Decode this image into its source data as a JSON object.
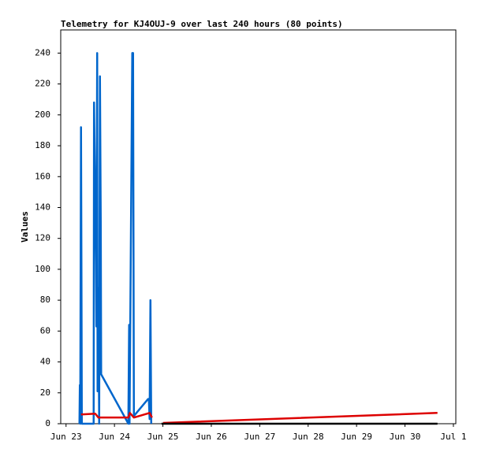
{
  "chart_data": {
    "type": "line",
    "title": "Telemetry for KJ4OUJ-9 over last 240 hours (80 points)",
    "y_label": "Values",
    "xlim": [
      22.89,
      31.05
    ],
    "xticks": [
      {
        "value": 23,
        "label": "Jun 23"
      },
      {
        "value": 24,
        "label": "Jun 24"
      },
      {
        "value": 25,
        "label": "Jun 25"
      },
      {
        "value": 26,
        "label": "Jun 26"
      },
      {
        "value": 27,
        "label": "Jun 27"
      },
      {
        "value": 28,
        "label": "Jun 28"
      },
      {
        "value": 29,
        "label": "Jun 29"
      },
      {
        "value": 30,
        "label": "Jun 30"
      },
      {
        "value": 31,
        "label": "Jul 1"
      }
    ],
    "ylim": [
      0,
      255
    ],
    "yticks": [
      0,
      20,
      40,
      60,
      80,
      100,
      120,
      140,
      160,
      180,
      200,
      220,
      240
    ],
    "series": [
      {
        "color": "#0066cc",
        "x": [
          23.277,
          23.285,
          23.293,
          23.309,
          23.318,
          23.326,
          23.57,
          23.578,
          23.586,
          23.603,
          23.619,
          23.627,
          23.643,
          23.651,
          23.668,
          23.684,
          23.7,
          23.717,
          23.725,
          24.287,
          24.295,
          24.303,
          24.311,
          24.368,
          24.384,
          24.401,
          24.694,
          24.71,
          24.726,
          24.743,
          24.759
        ],
        "values": [
          0,
          25,
          0,
          192,
          97,
          0,
          0,
          208,
          187,
          145,
          104,
          63,
          240,
          21,
          88,
          0,
          225,
          128,
          32,
          0,
          32,
          64,
          0,
          240,
          240,
          5,
          16,
          16,
          3,
          80,
          0
        ]
      },
      {
        "color": "#dd0000",
        "x": [
          23.309,
          23.603,
          23.668,
          24.287,
          24.319,
          24.401,
          24.726,
          24.775,
          24.9,
          25.003,
          30.671
        ],
        "values": [
          6,
          6.5,
          4,
          4,
          7,
          4,
          7,
          4,
          null,
          0.5,
          7
        ]
      },
      {
        "color": "#000000",
        "x": [
          24.971,
          30.671
        ],
        "values": [
          0,
          0
        ]
      }
    ]
  }
}
